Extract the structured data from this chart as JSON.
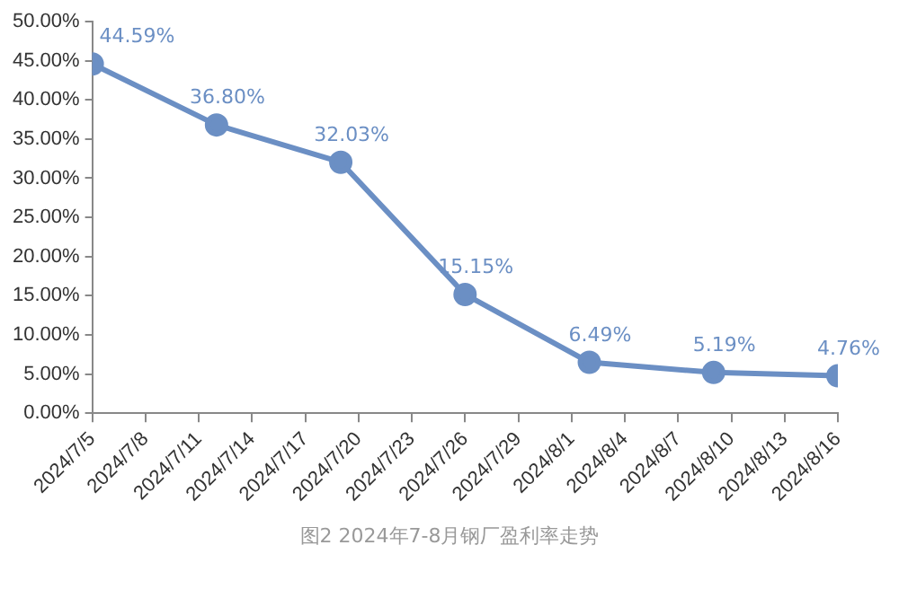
{
  "chart_data": {
    "type": "line",
    "x": [
      "2024-07-05",
      "2024-07-12",
      "2024-07-19",
      "2024-07-26",
      "2024-08-02",
      "2024-08-09",
      "2024-08-16"
    ],
    "series": [
      {
        "color": "#6b8fc4",
        "values": [
          44.59,
          36.8,
          32.03,
          15.15,
          6.49,
          5.19,
          4.76
        ],
        "value_labels": [
          "44.59%",
          "36.80%",
          "32.03%",
          "15.15%",
          "6.49%",
          "5.19%",
          "4.76%"
        ]
      }
    ],
    "xlim": [
      "2024-07-05",
      "2024-08-16"
    ],
    "xticks": [
      {
        "value": "2024-07-05",
        "label": "2024/7/5"
      },
      {
        "value": "2024-07-08",
        "label": "2024/7/8"
      },
      {
        "value": "2024-07-11",
        "label": "2024/7/11"
      },
      {
        "value": "2024-07-14",
        "label": "2024/7/14"
      },
      {
        "value": "2024-07-17",
        "label": "2024/7/17"
      },
      {
        "value": "2024-07-20",
        "label": "2024/7/20"
      },
      {
        "value": "2024-07-23",
        "label": "2024/7/23"
      },
      {
        "value": "2024-07-26",
        "label": "2024/7/26"
      },
      {
        "value": "2024-07-29",
        "label": "2024/7/29"
      },
      {
        "value": "2024-08-01",
        "label": "2024/8/1"
      },
      {
        "value": "2024-08-04",
        "label": "2024/8/4"
      },
      {
        "value": "2024-08-07",
        "label": "2024/8/7"
      },
      {
        "value": "2024-08-10",
        "label": "2024/8/10"
      },
      {
        "value": "2024-08-13",
        "label": "2024/8/13"
      },
      {
        "value": "2024-08-16",
        "label": "2024/8/16"
      }
    ],
    "ylim": [
      0,
      50
    ],
    "yticks": [
      {
        "value": 0,
        "label": "0.00%"
      },
      {
        "value": 5,
        "label": "5.00%"
      },
      {
        "value": 10,
        "label": "10.00%"
      },
      {
        "value": 15,
        "label": "15.00%"
      },
      {
        "value": 20,
        "label": "20.00%"
      },
      {
        "value": 25,
        "label": "25.00%"
      },
      {
        "value": 30,
        "label": "30.00%"
      },
      {
        "value": 35,
        "label": "35.00%"
      },
      {
        "value": 40,
        "label": "40.00%"
      },
      {
        "value": 45,
        "label": "45.00%"
      },
      {
        "value": 50,
        "label": "50.00%"
      }
    ],
    "grid": false,
    "legend": false,
    "marker": "circle",
    "line_style": "solid",
    "annotations": [
      "图2  2024年7-8月钢厂盈利率走势"
    ]
  }
}
